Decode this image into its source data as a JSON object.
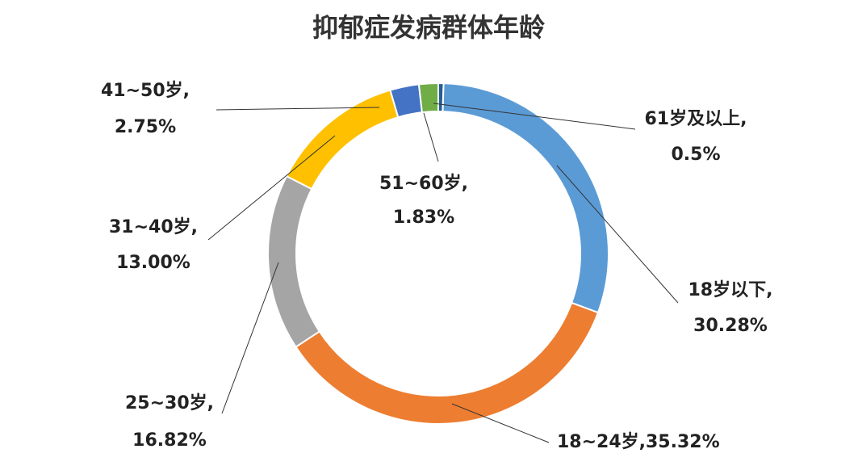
{
  "chart_data": {
    "type": "donut",
    "title": "抑郁症发病群体年龄",
    "categories": [
      "61岁及以上,",
      "18岁以下,",
      "18~24岁,",
      "25~30岁,",
      "31~40岁,",
      "41~50岁,",
      "51~60岁,"
    ],
    "values": [
      0.5,
      30.28,
      35.32,
      16.82,
      13.0,
      2.75,
      1.83
    ],
    "value_labels": [
      "0.5%",
      "30.28%",
      "35.32%",
      "16.82%",
      "13.00%",
      "2.75%",
      "1.83%"
    ],
    "colors": [
      "#255e91",
      "#5b9bd5",
      "#ed7d31",
      "#a5a5a5",
      "#ffc000",
      "#4472c4",
      "#70ad47"
    ]
  }
}
